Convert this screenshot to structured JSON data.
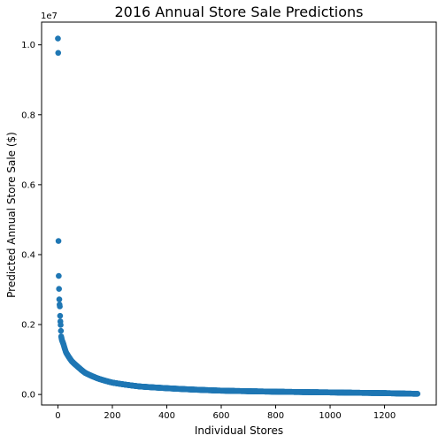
{
  "chart_data": {
    "type": "scatter",
    "title": "2016 Annual Store Sale Predictions",
    "xlabel": "Individual Stores",
    "ylabel": "Predicted Annual Store Sale ($)",
    "y_offset_label": "1e7",
    "xlim": [
      -60,
      1390
    ],
    "ylim": [
      -0.03,
      1.065
    ],
    "y_scale": 10000000,
    "x_ticks": [
      0,
      200,
      400,
      600,
      800,
      1000,
      1200
    ],
    "x_tick_labels": [
      "0",
      "200",
      "400",
      "600",
      "800",
      "1000",
      "1200"
    ],
    "y_ticks": [
      0.0,
      0.2,
      0.4,
      0.6,
      0.8,
      1.0
    ],
    "y_tick_labels": [
      "0.0",
      "0.2",
      "0.4",
      "0.6",
      "0.8",
      "1.0"
    ],
    "marker_color": "#1f77b4",
    "series_description": "1322 stores sorted by predicted annual sale, descending",
    "point_count": 1322,
    "leading_points": [
      {
        "x": 0,
        "y": 1.018
      },
      {
        "x": 1,
        "y": 0.977
      },
      {
        "x": 2,
        "y": 0.439
      },
      {
        "x": 3,
        "y": 0.339
      },
      {
        "x": 4,
        "y": 0.302
      },
      {
        "x": 5,
        "y": 0.272
      },
      {
        "x": 6,
        "y": 0.257
      },
      {
        "x": 7,
        "y": 0.252
      },
      {
        "x": 8,
        "y": 0.225
      },
      {
        "x": 9,
        "y": 0.209
      },
      {
        "x": 10,
        "y": 0.199
      },
      {
        "x": 11,
        "y": 0.182
      },
      {
        "x": 12,
        "y": 0.166
      },
      {
        "x": 13,
        "y": 0.162
      },
      {
        "x": 14,
        "y": 0.158
      }
    ],
    "tail_anchors": [
      {
        "x": 15,
        "y": 0.155
      },
      {
        "x": 20,
        "y": 0.145
      },
      {
        "x": 30,
        "y": 0.12
      },
      {
        "x": 50,
        "y": 0.096
      },
      {
        "x": 75,
        "y": 0.078
      },
      {
        "x": 100,
        "y": 0.062
      },
      {
        "x": 150,
        "y": 0.045
      },
      {
        "x": 200,
        "y": 0.034
      },
      {
        "x": 300,
        "y": 0.023
      },
      {
        "x": 400,
        "y": 0.018
      },
      {
        "x": 500,
        "y": 0.014
      },
      {
        "x": 600,
        "y": 0.011
      },
      {
        "x": 800,
        "y": 0.008
      },
      {
        "x": 1000,
        "y": 0.006
      },
      {
        "x": 1200,
        "y": 0.004
      },
      {
        "x": 1321,
        "y": 0.002
      }
    ]
  }
}
